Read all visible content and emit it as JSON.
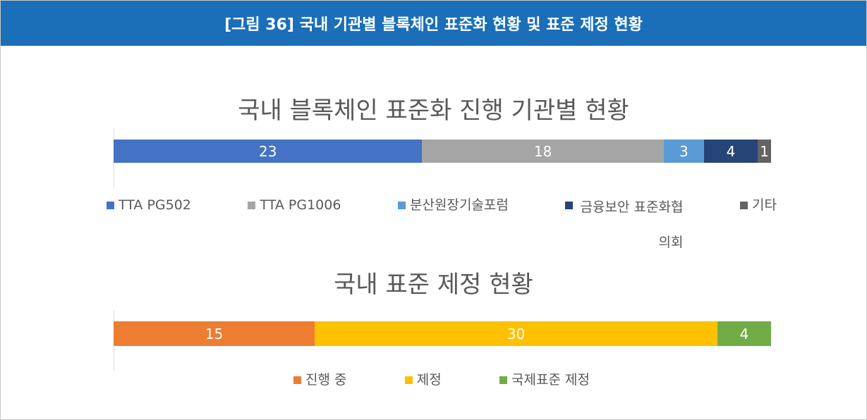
{
  "header": {
    "title": "[그림 36] 국내 기관별 블록체인 표준화 현황 및 표준 제정 현황"
  },
  "chart_data": [
    {
      "type": "stacked-bar",
      "title": "국내 블록체인 표준화 진행 기관별 현황",
      "xlim": [
        0,
        49
      ],
      "series": [
        {
          "name": "TTA PG502",
          "color": "#4472c4",
          "values": [
            23
          ]
        },
        {
          "name": "TTA PG1006",
          "color": "#a5a5a5",
          "values": [
            18
          ]
        },
        {
          "name": "분산원장기술포럼",
          "color": "#5b9bd5",
          "values": [
            3
          ]
        },
        {
          "name": "금융보안 표준화협의회",
          "color": "#264478",
          "values": [
            4
          ]
        },
        {
          "name": "기타",
          "color": "#636363",
          "values": [
            1
          ]
        }
      ]
    },
    {
      "type": "stacked-bar",
      "title": "국내 표준 제정 현황",
      "xlim": [
        0,
        49
      ],
      "series": [
        {
          "name": "진행 중",
          "color": "#ed7d31",
          "values": [
            15
          ]
        },
        {
          "name": "제정",
          "color": "#ffc000",
          "values": [
            30
          ]
        },
        {
          "name": "국제표준 제정",
          "color": "#70ad47",
          "values": [
            4
          ]
        }
      ]
    }
  ]
}
